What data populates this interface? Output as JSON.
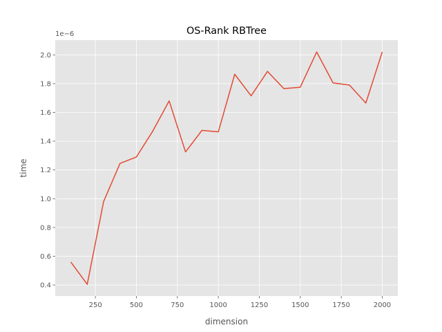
{
  "chart_data": {
    "type": "line",
    "title": "OS-Rank RBTree",
    "xlabel": "dimension",
    "ylabel": "time",
    "y_offset_label": "1e−6",
    "xlim": [
      5,
      2095
    ],
    "ylim": [
      0.3236,
      2.1024
    ],
    "xticks": [
      250,
      500,
      750,
      1000,
      1250,
      1500,
      1750,
      2000
    ],
    "yticks": [
      0.4,
      0.6,
      0.8,
      1.0,
      1.2,
      1.4,
      1.6,
      1.8,
      2.0
    ],
    "ytick_labels": [
      "0.4",
      "0.6",
      "0.8",
      "1.0",
      "1.2",
      "1.4",
      "1.6",
      "1.8",
      "2.0"
    ],
    "grid": true,
    "series": [
      {
        "color": "#E24A33",
        "x": [
          100,
          200,
          300,
          400,
          500,
          600,
          700,
          800,
          900,
          1000,
          1100,
          1200,
          1300,
          1400,
          1500,
          1600,
          1700,
          1800,
          1900,
          2000
        ],
        "y": [
          0.56,
          0.405,
          0.98,
          1.245,
          1.29,
          1.47,
          1.68,
          1.325,
          1.475,
          1.465,
          1.865,
          1.715,
          1.885,
          1.765,
          1.775,
          2.02,
          1.805,
          1.79,
          1.665,
          2.02
        ]
      }
    ],
    "colors": {
      "background": "#E5E5E5",
      "grid": "#FFFFFF",
      "line": "#E24A33",
      "text": "#555555"
    }
  }
}
